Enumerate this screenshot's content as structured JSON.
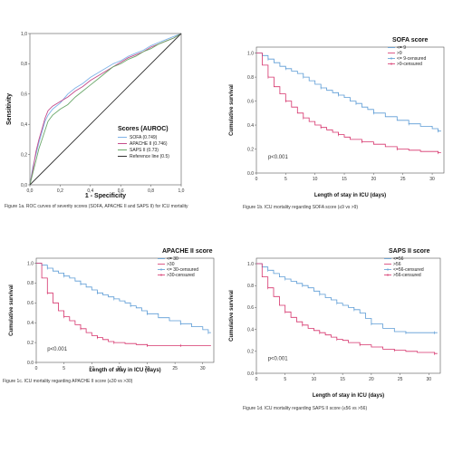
{
  "chart_data": [
    {
      "type": "line",
      "id": "roc",
      "xlabel": "1 - Specificity",
      "ylabel": "Sensitivity",
      "xlim": [
        0,
        1
      ],
      "ylim": [
        0,
        1
      ],
      "x_ticks": [
        "0,0",
        "0,2",
        "0,4",
        "0,6",
        "0,8",
        "1,0"
      ],
      "y_ticks": [
        "0,0",
        "0,2",
        "0,4",
        "0,6",
        "0,8",
        "1,0"
      ],
      "legend_title": "Scores (AUROC)",
      "legend_placement": "bottom-right",
      "caption": "Figure 1a. ROC curves of severity scores (SOFA, APACHE II and SAPS II) for ICU mortality",
      "series": [
        {
          "name": "SOFA (0.749)",
          "color": "#7fb3e8",
          "x": [
            0,
            0.02,
            0.04,
            0.06,
            0.08,
            0.1,
            0.12,
            0.15,
            0.2,
            0.25,
            0.3,
            0.35,
            0.4,
            0.45,
            0.5,
            0.55,
            0.6,
            0.65,
            0.7,
            0.75,
            0.8,
            0.85,
            0.9,
            0.95,
            1
          ],
          "y": [
            0,
            0.12,
            0.2,
            0.28,
            0.35,
            0.42,
            0.46,
            0.5,
            0.54,
            0.6,
            0.64,
            0.67,
            0.71,
            0.74,
            0.77,
            0.8,
            0.82,
            0.85,
            0.87,
            0.89,
            0.92,
            0.94,
            0.96,
            0.98,
            1
          ]
        },
        {
          "name": "APACHE II (0.746)",
          "color": "#c44a8a",
          "x": [
            0,
            0.02,
            0.04,
            0.06,
            0.08,
            0.1,
            0.12,
            0.15,
            0.2,
            0.25,
            0.3,
            0.35,
            0.4,
            0.45,
            0.5,
            0.55,
            0.6,
            0.65,
            0.7,
            0.75,
            0.8,
            0.85,
            0.9,
            0.95,
            1
          ],
          "y": [
            0,
            0.1,
            0.22,
            0.3,
            0.37,
            0.44,
            0.49,
            0.52,
            0.55,
            0.58,
            0.62,
            0.65,
            0.69,
            0.72,
            0.75,
            0.78,
            0.81,
            0.84,
            0.86,
            0.88,
            0.91,
            0.93,
            0.95,
            0.97,
            1
          ]
        },
        {
          "name": "SAPS II (0.73)",
          "color": "#6aa86a",
          "x": [
            0,
            0.02,
            0.04,
            0.06,
            0.08,
            0.1,
            0.12,
            0.15,
            0.2,
            0.25,
            0.3,
            0.35,
            0.4,
            0.45,
            0.5,
            0.55,
            0.6,
            0.65,
            0.7,
            0.75,
            0.8,
            0.85,
            0.9,
            0.95,
            1
          ],
          "y": [
            0,
            0.08,
            0.16,
            0.24,
            0.3,
            0.36,
            0.42,
            0.46,
            0.5,
            0.53,
            0.58,
            0.62,
            0.66,
            0.7,
            0.74,
            0.78,
            0.8,
            0.83,
            0.85,
            0.88,
            0.9,
            0.93,
            0.95,
            0.97,
            1
          ]
        },
        {
          "name": "Reference line (0.5)",
          "color": "#333333",
          "x": [
            0,
            1
          ],
          "y": [
            0,
            1
          ]
        }
      ]
    },
    {
      "type": "line",
      "id": "sofa",
      "legend_title": "SOFA score",
      "legend": [
        "<= 9",
        ">9",
        "<= 9-censured",
        ">9-censured"
      ],
      "xlabel": "Length of stay in ICU (days)",
      "ylabel": "Cumulative survival",
      "xlim": [
        0,
        32
      ],
      "ylim": [
        0,
        1.05
      ],
      "x_ticks": [
        0,
        5,
        10,
        15,
        20,
        25,
        30
      ],
      "y_ticks": [
        "0.0",
        "0.2",
        "0.4",
        "0.6",
        "0.8",
        "1.0"
      ],
      "pvalue": "p<0.001",
      "caption": "Figure 1b. ICU mortality regarding SOFA score (≤9 vs >9)",
      "series": [
        {
          "name": "<= 9",
          "color": "#5b9bd5",
          "x": [
            0,
            1,
            2,
            3,
            4,
            5,
            6,
            7,
            8,
            9,
            10,
            11,
            12,
            13,
            14,
            15,
            16,
            17,
            18,
            19,
            20,
            22,
            24,
            26,
            28,
            30,
            31
          ],
          "y": [
            1,
            0.98,
            0.95,
            0.92,
            0.89,
            0.87,
            0.85,
            0.83,
            0.8,
            0.77,
            0.74,
            0.71,
            0.69,
            0.67,
            0.65,
            0.63,
            0.6,
            0.58,
            0.55,
            0.53,
            0.5,
            0.47,
            0.44,
            0.41,
            0.39,
            0.37,
            0.35
          ]
        },
        {
          "name": ">9",
          "color": "#d6336c",
          "x": [
            0,
            1,
            2,
            3,
            4,
            5,
            6,
            7,
            8,
            9,
            10,
            11,
            12,
            13,
            14,
            15,
            16,
            18,
            20,
            22,
            24,
            26,
            28,
            31
          ],
          "y": [
            1,
            0.9,
            0.8,
            0.72,
            0.66,
            0.6,
            0.55,
            0.5,
            0.46,
            0.43,
            0.4,
            0.38,
            0.36,
            0.34,
            0.32,
            0.3,
            0.28,
            0.26,
            0.24,
            0.22,
            0.2,
            0.19,
            0.18,
            0.17
          ]
        }
      ]
    },
    {
      "type": "line",
      "id": "apache",
      "legend_title": "APACHE II score",
      "legend": [
        "<= 30",
        ">30",
        "<= 30-censured",
        ">30-censured"
      ],
      "xlabel": "Length of stay in ICU (days)",
      "ylabel": "Cumulative survival",
      "xlim": [
        0,
        32
      ],
      "ylim": [
        0,
        1.05
      ],
      "x_ticks": [
        0,
        5,
        10,
        15,
        20,
        25,
        30
      ],
      "y_ticks": [
        "0.0",
        "0.2",
        "0.4",
        "0.6",
        "0.8",
        "1.0"
      ],
      "pvalue": "p<0.001",
      "caption": "Figure 1c. ICU mortality regarding APACHE II score (≤30 vs >30)",
      "series": [
        {
          "name": "<= 30",
          "color": "#5b9bd5",
          "x": [
            0,
            1,
            2,
            3,
            4,
            5,
            6,
            7,
            8,
            9,
            10,
            11,
            12,
            13,
            14,
            15,
            16,
            17,
            18,
            19,
            20,
            22,
            24,
            26,
            28,
            30,
            31
          ],
          "y": [
            1,
            0.98,
            0.95,
            0.92,
            0.9,
            0.87,
            0.85,
            0.82,
            0.79,
            0.76,
            0.73,
            0.7,
            0.68,
            0.66,
            0.64,
            0.62,
            0.6,
            0.57,
            0.55,
            0.52,
            0.49,
            0.45,
            0.42,
            0.39,
            0.36,
            0.33,
            0.3
          ]
        },
        {
          "name": ">30",
          "color": "#d6336c",
          "x": [
            0,
            1,
            2,
            3,
            4,
            5,
            6,
            7,
            8,
            9,
            10,
            11,
            12,
            13,
            14,
            16,
            18,
            20,
            22,
            24,
            26,
            28,
            31
          ],
          "y": [
            1,
            0.85,
            0.7,
            0.6,
            0.52,
            0.46,
            0.42,
            0.38,
            0.34,
            0.3,
            0.27,
            0.25,
            0.23,
            0.21,
            0.2,
            0.19,
            0.18,
            0.17,
            0.17,
            0.17,
            0.17,
            0.17,
            0.17
          ]
        }
      ]
    },
    {
      "type": "line",
      "id": "saps",
      "legend_title": "SAPS II score",
      "legend": [
        "<=56",
        ">56",
        "<=56-censured",
        ">56-censured"
      ],
      "xlabel": "Length of stay in ICU (days)",
      "ylabel": "Cumulative survival",
      "xlim": [
        0,
        32
      ],
      "ylim": [
        0,
        1.05
      ],
      "x_ticks": [
        0,
        5,
        10,
        15,
        20,
        25,
        30
      ],
      "y_ticks": [
        "0.0",
        "0.2",
        "0.4",
        "0.6",
        "0.8",
        "1.0"
      ],
      "pvalue": "p<0.001",
      "caption": "Figure 1d. ICU mortality regarding SAPS II score (≤56 vs >56)",
      "series": [
        {
          "name": "<=56",
          "color": "#5b9bd5",
          "x": [
            0,
            1,
            2,
            3,
            4,
            5,
            6,
            7,
            8,
            9,
            10,
            11,
            12,
            13,
            14,
            15,
            16,
            17,
            18,
            19,
            20,
            22,
            24,
            26,
            28,
            30,
            31
          ],
          "y": [
            1,
            0.97,
            0.94,
            0.91,
            0.88,
            0.86,
            0.84,
            0.82,
            0.8,
            0.78,
            0.75,
            0.72,
            0.69,
            0.67,
            0.64,
            0.62,
            0.6,
            0.58,
            0.55,
            0.5,
            0.45,
            0.41,
            0.38,
            0.37,
            0.37,
            0.37,
            0.37
          ]
        },
        {
          "name": ">56",
          "color": "#d6336c",
          "x": [
            0,
            1,
            2,
            3,
            4,
            5,
            6,
            7,
            8,
            9,
            10,
            11,
            12,
            13,
            14,
            15,
            16,
            18,
            20,
            22,
            24,
            26,
            28,
            31
          ],
          "y": [
            1,
            0.88,
            0.78,
            0.7,
            0.62,
            0.56,
            0.51,
            0.47,
            0.44,
            0.41,
            0.39,
            0.37,
            0.35,
            0.33,
            0.31,
            0.3,
            0.28,
            0.26,
            0.24,
            0.22,
            0.21,
            0.2,
            0.19,
            0.18
          ]
        }
      ]
    }
  ]
}
